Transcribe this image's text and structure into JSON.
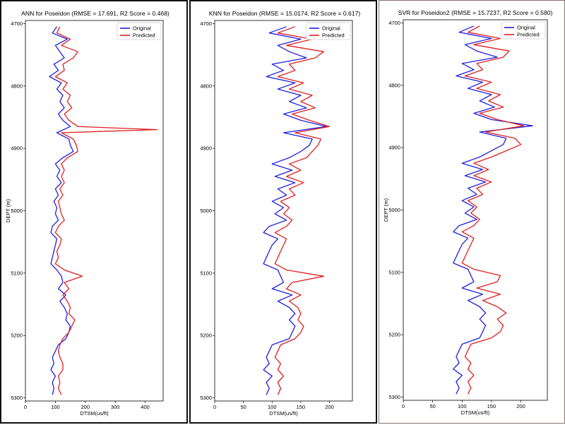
{
  "chart_data": [
    {
      "type": "line",
      "title": "ANN for Poseidon (RMSE = 17.691, R2 Score = 0.468)",
      "xlabel": "DTSM(us/ft)",
      "ylabel": "DEPT (m)",
      "xlim": [
        0,
        460
      ],
      "ylim": [
        5305,
        4695
      ],
      "xticks": [
        "0",
        "100",
        "200",
        "300",
        "400"
      ],
      "yticks": [
        "4700",
        "4800",
        "4900",
        "5000",
        "5100",
        "5200",
        "5300"
      ],
      "legend": {
        "position": "top-right",
        "entries": [
          "Original",
          "Predicted"
        ]
      },
      "colors": {
        "Original": "#1f1fe0",
        "Predicted": "#e01f1f"
      },
      "series": [
        {
          "name": "Original",
          "depth": [
            4705,
            4715,
            4725,
            4735,
            4745,
            4755,
            4765,
            4775,
            4785,
            4795,
            4805,
            4815,
            4825,
            4835,
            4845,
            4855,
            4865,
            4875,
            4885,
            4895,
            4905,
            4915,
            4925,
            4935,
            4945,
            4955,
            4965,
            4975,
            4985,
            4995,
            5005,
            5015,
            5025,
            5035,
            5045,
            5055,
            5065,
            5075,
            5085,
            5095,
            5105,
            5115,
            5125,
            5135,
            5145,
            5155,
            5165,
            5175,
            5185,
            5195,
            5205,
            5215,
            5225,
            5235,
            5245,
            5255,
            5265,
            5275,
            5285,
            5295
          ],
          "values": [
            105,
            90,
            140,
            100,
            115,
            130,
            95,
            110,
            80,
            120,
            105,
            125,
            115,
            130,
            110,
            125,
            150,
            105,
            145,
            150,
            160,
            125,
            100,
            115,
            105,
            120,
            100,
            110,
            95,
            105,
            100,
            110,
            90,
            85,
            105,
            100,
            95,
            90,
            85,
            105,
            120,
            125,
            110,
            135,
            115,
            130,
            140,
            135,
            150,
            145,
            135,
            110,
            100,
            90,
            95,
            85,
            100,
            90,
            95,
            90
          ]
        },
        {
          "name": "Predicted",
          "depth": [
            4705,
            4715,
            4725,
            4735,
            4745,
            4755,
            4765,
            4775,
            4785,
            4795,
            4805,
            4815,
            4825,
            4835,
            4845,
            4855,
            4865,
            4870,
            4875,
            4885,
            4895,
            4905,
            4915,
            4925,
            4935,
            4945,
            4955,
            4965,
            4975,
            4985,
            4995,
            5005,
            5015,
            5025,
            5035,
            5045,
            5055,
            5065,
            5075,
            5085,
            5095,
            5105,
            5115,
            5125,
            5135,
            5145,
            5155,
            5165,
            5175,
            5185,
            5195,
            5205,
            5215,
            5225,
            5235,
            5245,
            5255,
            5265,
            5275,
            5285,
            5295
          ],
          "values": [
            115,
            105,
            150,
            120,
            175,
            160,
            125,
            130,
            100,
            140,
            125,
            150,
            140,
            155,
            130,
            145,
            175,
            440,
            120,
            160,
            170,
            175,
            140,
            120,
            130,
            120,
            130,
            115,
            125,
            110,
            115,
            120,
            130,
            110,
            100,
            120,
            115,
            105,
            110,
            100,
            130,
            190,
            130,
            145,
            125,
            140,
            150,
            145,
            165,
            155,
            145,
            125,
            115,
            110,
            115,
            125,
            125,
            110,
            115,
            110,
            120
          ]
        }
      ]
    },
    {
      "type": "line",
      "title": "KNN for Poseidon (RMSE = 15.0174, R2 Score = 0.617)",
      "xlabel": "DTSM(us/ft)",
      "ylabel": "",
      "xlim": [
        0,
        240
      ],
      "ylim": [
        5305,
        4695
      ],
      "xticks": [
        "0",
        "50",
        "100",
        "150",
        "200"
      ],
      "yticks": [
        "4700",
        "4800",
        "4900",
        "5000",
        "5100",
        "5200",
        "5300"
      ],
      "legend": {
        "position": "top-right",
        "entries": [
          "Original",
          "Predicted"
        ]
      },
      "colors": {
        "Original": "#1f1fe0",
        "Predicted": "#e01f1f"
      },
      "series": [
        {
          "name": "Original",
          "depth": [
            4705,
            4715,
            4725,
            4735,
            4745,
            4755,
            4765,
            4775,
            4785,
            4795,
            4805,
            4815,
            4825,
            4835,
            4845,
            4855,
            4865,
            4875,
            4885,
            4895,
            4905,
            4915,
            4925,
            4935,
            4945,
            4955,
            4965,
            4975,
            4985,
            4995,
            5005,
            5015,
            5025,
            5035,
            5045,
            5055,
            5065,
            5075,
            5085,
            5095,
            5105,
            5115,
            5125,
            5135,
            5145,
            5155,
            5165,
            5175,
            5185,
            5195,
            5205,
            5215,
            5225,
            5235,
            5245,
            5255,
            5265,
            5275,
            5285,
            5295
          ],
          "values": [
            125,
            95,
            150,
            110,
            130,
            160,
            100,
            120,
            90,
            140,
            110,
            150,
            130,
            160,
            120,
            150,
            195,
            120,
            170,
            165,
            150,
            130,
            100,
            135,
            105,
            140,
            110,
            125,
            100,
            120,
            105,
            125,
            95,
            85,
            110,
            100,
            95,
            90,
            85,
            110,
            115,
            120,
            100,
            135,
            110,
            130,
            140,
            130,
            140,
            135,
            130,
            100,
            95,
            90,
            95,
            85,
            100,
            90,
            95,
            90
          ]
        },
        {
          "name": "Predicted",
          "depth": [
            4705,
            4715,
            4725,
            4735,
            4745,
            4755,
            4765,
            4775,
            4785,
            4795,
            4805,
            4815,
            4825,
            4835,
            4845,
            4855,
            4865,
            4875,
            4885,
            4895,
            4905,
            4915,
            4925,
            4935,
            4945,
            4955,
            4965,
            4975,
            4985,
            4995,
            5005,
            5015,
            5025,
            5035,
            5045,
            5055,
            5065,
            5075,
            5085,
            5095,
            5105,
            5115,
            5125,
            5135,
            5145,
            5155,
            5165,
            5175,
            5185,
            5195,
            5205,
            5215,
            5225,
            5235,
            5245,
            5255,
            5265,
            5275,
            5285,
            5295
          ],
          "values": [
            140,
            110,
            170,
            125,
            190,
            175,
            130,
            140,
            110,
            155,
            130,
            170,
            150,
            175,
            135,
            165,
            200,
            140,
            185,
            180,
            170,
            160,
            130,
            150,
            125,
            155,
            130,
            140,
            115,
            130,
            120,
            135,
            125,
            105,
            125,
            120,
            115,
            110,
            105,
            125,
            190,
            135,
            125,
            150,
            130,
            145,
            150,
            145,
            155,
            150,
            140,
            115,
            110,
            105,
            115,
            110,
            120,
            110,
            115,
            110
          ]
        }
      ]
    },
    {
      "type": "line",
      "title": "SVR for Poseidon2 (RMSE = 15.7237, R2 Score = 0.580)",
      "xlabel": "DTSM(us/ft)",
      "ylabel": "DEPT (m)",
      "xlim": [
        0,
        245
      ],
      "ylim": [
        5305,
        4695
      ],
      "xticks": [
        "0",
        "50",
        "100",
        "150",
        "200"
      ],
      "yticks": [
        "4700",
        "4800",
        "4900",
        "5000",
        "5100",
        "5200",
        "5300"
      ],
      "legend": {
        "position": "top-right",
        "entries": [
          "Original",
          "Predicted"
        ]
      },
      "colors": {
        "Original": "#1f1fe0",
        "Predicted": "#e01f1f"
      },
      "series": [
        {
          "name": "Original",
          "depth": [
            4705,
            4715,
            4725,
            4735,
            4745,
            4755,
            4765,
            4775,
            4785,
            4795,
            4805,
            4815,
            4825,
            4835,
            4845,
            4855,
            4865,
            4875,
            4885,
            4895,
            4905,
            4915,
            4925,
            4935,
            4945,
            4955,
            4965,
            4975,
            4985,
            4995,
            5005,
            5015,
            5025,
            5035,
            5045,
            5055,
            5065,
            5075,
            5085,
            5095,
            5105,
            5115,
            5125,
            5135,
            5145,
            5155,
            5165,
            5175,
            5185,
            5195,
            5205,
            5215,
            5225,
            5235,
            5245,
            5255,
            5265,
            5275,
            5285,
            5295
          ],
          "values": [
            120,
            95,
            150,
            105,
            125,
            160,
            100,
            120,
            90,
            135,
            110,
            150,
            130,
            155,
            120,
            150,
            220,
            130,
            175,
            170,
            150,
            130,
            100,
            135,
            105,
            140,
            110,
            125,
            100,
            120,
            105,
            125,
            95,
            85,
            110,
            100,
            95,
            90,
            85,
            110,
            115,
            120,
            100,
            135,
            110,
            130,
            140,
            130,
            140,
            135,
            130,
            100,
            95,
            90,
            95,
            85,
            100,
            90,
            95,
            90
          ]
        },
        {
          "name": "Predicted",
          "depth": [
            4705,
            4715,
            4725,
            4735,
            4745,
            4755,
            4765,
            4775,
            4785,
            4795,
            4805,
            4815,
            4825,
            4835,
            4845,
            4855,
            4865,
            4875,
            4885,
            4895,
            4905,
            4915,
            4925,
            4935,
            4945,
            4955,
            4965,
            4975,
            4985,
            4995,
            5005,
            5015,
            5025,
            5035,
            5045,
            5055,
            5065,
            5075,
            5085,
            5095,
            5105,
            5115,
            5125,
            5135,
            5145,
            5155,
            5165,
            5175,
            5185,
            5195,
            5205,
            5215,
            5225,
            5235,
            5245,
            5255,
            5265,
            5275,
            5285,
            5295
          ],
          "values": [
            130,
            110,
            165,
            120,
            180,
            170,
            125,
            135,
            105,
            150,
            125,
            165,
            145,
            170,
            130,
            160,
            205,
            140,
            190,
            200,
            175,
            150,
            120,
            145,
            120,
            150,
            125,
            135,
            110,
            125,
            115,
            130,
            120,
            100,
            120,
            115,
            110,
            105,
            100,
            120,
            165,
            160,
            125,
            165,
            135,
            160,
            175,
            160,
            170,
            165,
            150,
            115,
            110,
            105,
            115,
            110,
            120,
            110,
            115,
            110
          ]
        }
      ]
    }
  ]
}
